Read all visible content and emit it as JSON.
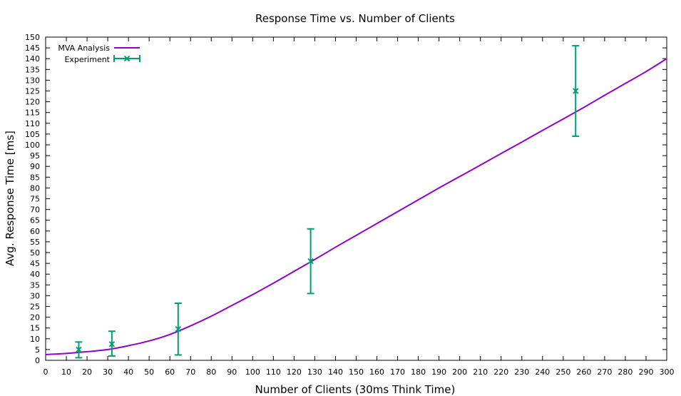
{
  "chart_data": {
    "type": "line",
    "title": "Response Time vs. Number of Clients",
    "xlabel": "Number of Clients (30ms Think Time)",
    "ylabel": "Avg. Response Time [ms]",
    "xlim": [
      0,
      300
    ],
    "ylim": [
      0,
      150
    ],
    "x_ticks": [
      0,
      10,
      20,
      30,
      40,
      50,
      60,
      70,
      80,
      90,
      100,
      110,
      120,
      130,
      140,
      150,
      160,
      170,
      180,
      190,
      200,
      210,
      220,
      230,
      240,
      250,
      260,
      270,
      280,
      290,
      300
    ],
    "y_ticks": [
      0,
      5,
      10,
      15,
      20,
      25,
      30,
      35,
      40,
      45,
      50,
      55,
      60,
      65,
      70,
      75,
      80,
      85,
      90,
      95,
      100,
      105,
      110,
      115,
      120,
      125,
      130,
      135,
      140,
      145,
      150
    ],
    "grid": false,
    "legend_position": "top-left",
    "series": [
      {
        "name": "MVA Analysis",
        "kind": "line",
        "color": "#9400d3",
        "x": [
          0,
          10,
          20,
          30,
          40,
          50,
          60,
          70,
          80,
          90,
          100,
          110,
          120,
          130,
          140,
          150,
          160,
          170,
          180,
          190,
          200,
          210,
          220,
          230,
          240,
          250,
          260,
          270,
          280,
          290,
          300
        ],
        "y": [
          2.7,
          3.2,
          4.0,
          5.0,
          6.8,
          9.0,
          12.0,
          16.0,
          20.5,
          25.5,
          30.5,
          35.8,
          41.3,
          46.8,
          52.5,
          58.0,
          63.5,
          69.0,
          74.5,
          80.0,
          85.3,
          90.6,
          96.0,
          101.3,
          106.7,
          112.0,
          117.4,
          123.0,
          128.5,
          134.0,
          140.0
        ]
      },
      {
        "name": "Experiment",
        "kind": "errorbar",
        "color": "#009e73",
        "points": [
          {
            "x": 16,
            "y": 5.0,
            "low": 1.2,
            "high": 8.5
          },
          {
            "x": 32,
            "y": 7.5,
            "low": 2.0,
            "high": 13.5
          },
          {
            "x": 64,
            "y": 14.5,
            "low": 2.5,
            "high": 26.5
          },
          {
            "x": 128,
            "y": 46.0,
            "low": 31.0,
            "high": 61.0
          },
          {
            "x": 256,
            "y": 125.0,
            "low": 104.0,
            "high": 146.0
          }
        ]
      }
    ]
  }
}
